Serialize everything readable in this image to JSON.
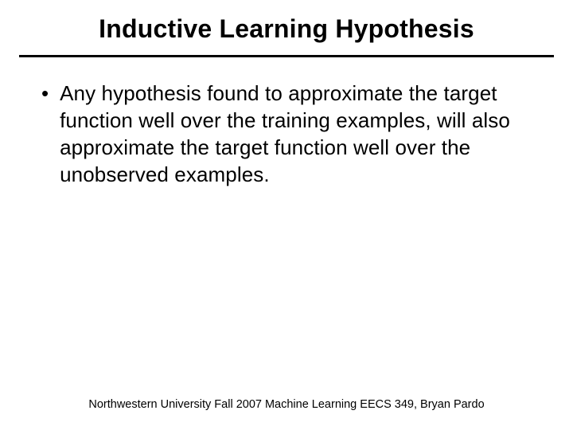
{
  "slide": {
    "title": "Inductive Learning Hypothesis",
    "title_fontsize": 32,
    "title_weight": "bold",
    "title_color": "#000000",
    "divider_color": "#000000",
    "divider_thickness": 3,
    "bullets": [
      {
        "marker": "•",
        "text": "Any hypothesis found to approximate the target function well over the training examples, will also approximate the target function well over the unobserved examples."
      }
    ],
    "body_fontsize": 26,
    "body_lineheight": 34,
    "body_color": "#000000",
    "footer": "Northwestern University Fall  2007 Machine Learning EECS 349, Bryan Pardo",
    "footer_fontsize": 14.5,
    "footer_color": "#000000",
    "background_color": "#ffffff"
  }
}
